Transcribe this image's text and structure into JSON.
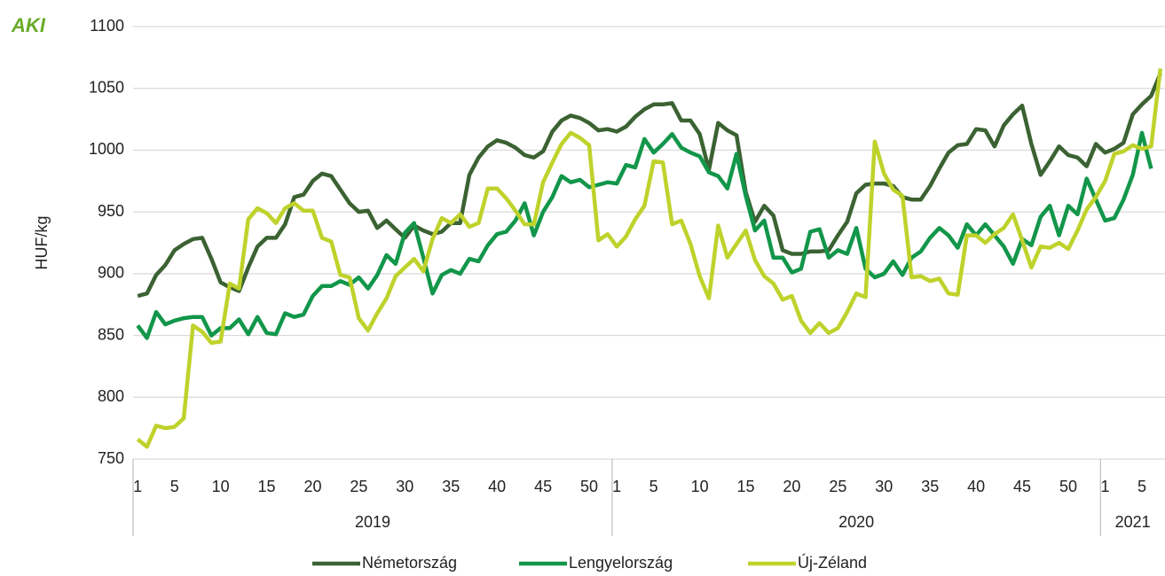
{
  "chart_data": {
    "type": "line",
    "logo": "AKI",
    "y_label": "HUF/kg",
    "years": [
      "2019",
      "2020",
      "2021"
    ],
    "categories": [
      "1",
      null,
      null,
      null,
      "5",
      null,
      null,
      null,
      null,
      "10",
      null,
      null,
      null,
      null,
      "15",
      null,
      null,
      null,
      null,
      "20",
      null,
      null,
      null,
      null,
      "25",
      null,
      null,
      null,
      null,
      "30",
      null,
      null,
      null,
      null,
      "35",
      null,
      null,
      null,
      null,
      "40",
      null,
      null,
      null,
      null,
      "45",
      null,
      null,
      null,
      null,
      "50",
      null,
      null,
      "1",
      null,
      null,
      null,
      "5",
      null,
      null,
      null,
      null,
      "10",
      null,
      null,
      null,
      null,
      "15",
      null,
      null,
      null,
      null,
      "20",
      null,
      null,
      null,
      null,
      "25",
      null,
      null,
      null,
      null,
      "30",
      null,
      null,
      null,
      null,
      "35",
      null,
      null,
      null,
      null,
      "40",
      null,
      null,
      null,
      null,
      "45",
      null,
      null,
      null,
      null,
      "50",
      null,
      null,
      null,
      "1",
      null,
      null,
      null,
      "5",
      null,
      null
    ],
    "ylim": [
      750,
      1100
    ],
    "yticks": [
      750,
      800,
      850,
      900,
      950,
      1000,
      1050,
      1100
    ],
    "grid": true,
    "legend": "bottom",
    "series": [
      {
        "name": "Németország",
        "color": "#3b6232",
        "values": [
          882,
          884,
          899,
          907,
          919,
          924,
          928,
          929,
          912,
          893,
          889,
          886,
          905,
          922,
          929,
          929,
          940,
          962,
          964,
          975,
          981,
          979,
          968,
          957,
          950,
          951,
          937,
          943,
          936,
          929,
          939,
          935,
          932,
          934,
          941,
          941,
          980,
          994,
          1003,
          1008,
          1006,
          1002,
          996,
          994,
          999,
          1015,
          1024,
          1028,
          1026,
          1022,
          1016,
          1017,
          1015,
          1019,
          1027,
          1033,
          1037,
          1037,
          1038,
          1024,
          1024,
          1013,
          984,
          1022,
          1016,
          1012,
          966,
          942,
          955,
          947,
          919,
          916,
          916,
          918,
          918,
          919,
          931,
          942,
          965,
          972,
          973,
          973,
          971,
          962,
          960,
          960,
          971,
          985,
          998,
          1004,
          1005,
          1017,
          1016,
          1003,
          1020,
          1029,
          1036,
          1005,
          980,
          991,
          1003,
          996,
          994,
          987,
          1005,
          998,
          1001,
          1006,
          1029,
          1037,
          1044,
          1062
        ]
      },
      {
        "name": "Lengyelország",
        "color": "#12964a",
        "values": [
          858,
          848,
          869,
          859,
          862,
          864,
          865,
          865,
          850,
          856,
          856,
          863,
          851,
          865,
          852,
          851,
          868,
          865,
          867,
          882,
          890,
          890,
          894,
          891,
          897,
          888,
          899,
          915,
          908,
          933,
          941,
          913,
          884,
          899,
          903,
          900,
          912,
          910,
          923,
          932,
          934,
          943,
          957,
          931,
          950,
          962,
          979,
          974,
          976,
          970,
          972,
          974,
          973,
          988,
          986,
          1009,
          998,
          1005,
          1013,
          1002,
          998,
          995,
          982,
          979,
          969,
          997,
          963,
          935,
          943,
          913,
          913,
          901,
          904,
          934,
          936,
          913,
          919,
          916,
          937,
          904,
          897,
          900,
          910,
          899,
          913,
          918,
          929,
          937,
          931,
          921,
          940,
          931,
          940,
          931,
          922,
          908,
          928,
          923,
          946,
          955,
          931,
          955,
          948,
          977,
          960,
          943,
          945,
          960,
          980,
          1014,
          985,
          null
        ]
      },
      {
        "name": "Új-Zéland",
        "color": "#bfd22b",
        "values": [
          766,
          760,
          777,
          775,
          776,
          783,
          858,
          853,
          844,
          845,
          892,
          888,
          944,
          953,
          949,
          941,
          953,
          957,
          951,
          951,
          929,
          926,
          899,
          897,
          864,
          854,
          868,
          880,
          898,
          905,
          912,
          902,
          928,
          945,
          941,
          948,
          938,
          941,
          969,
          969,
          961,
          951,
          940,
          940,
          974,
          990,
          1005,
          1014,
          1010,
          1004,
          927,
          932,
          922,
          930,
          944,
          955,
          991,
          990,
          940,
          943,
          924,
          898,
          880,
          939,
          913,
          924,
          935,
          911,
          898,
          892,
          879,
          882,
          862,
          852,
          860,
          852,
          856,
          869,
          884,
          881,
          1007,
          981,
          968,
          963,
          897,
          898,
          894,
          896,
          884,
          883,
          931,
          931,
          925,
          932,
          937,
          948,
          927,
          905,
          922,
          921,
          925,
          920,
          935,
          952,
          962,
          975,
          997,
          999,
          1004,
          1001,
          1003,
          1066
        ]
      }
    ]
  }
}
